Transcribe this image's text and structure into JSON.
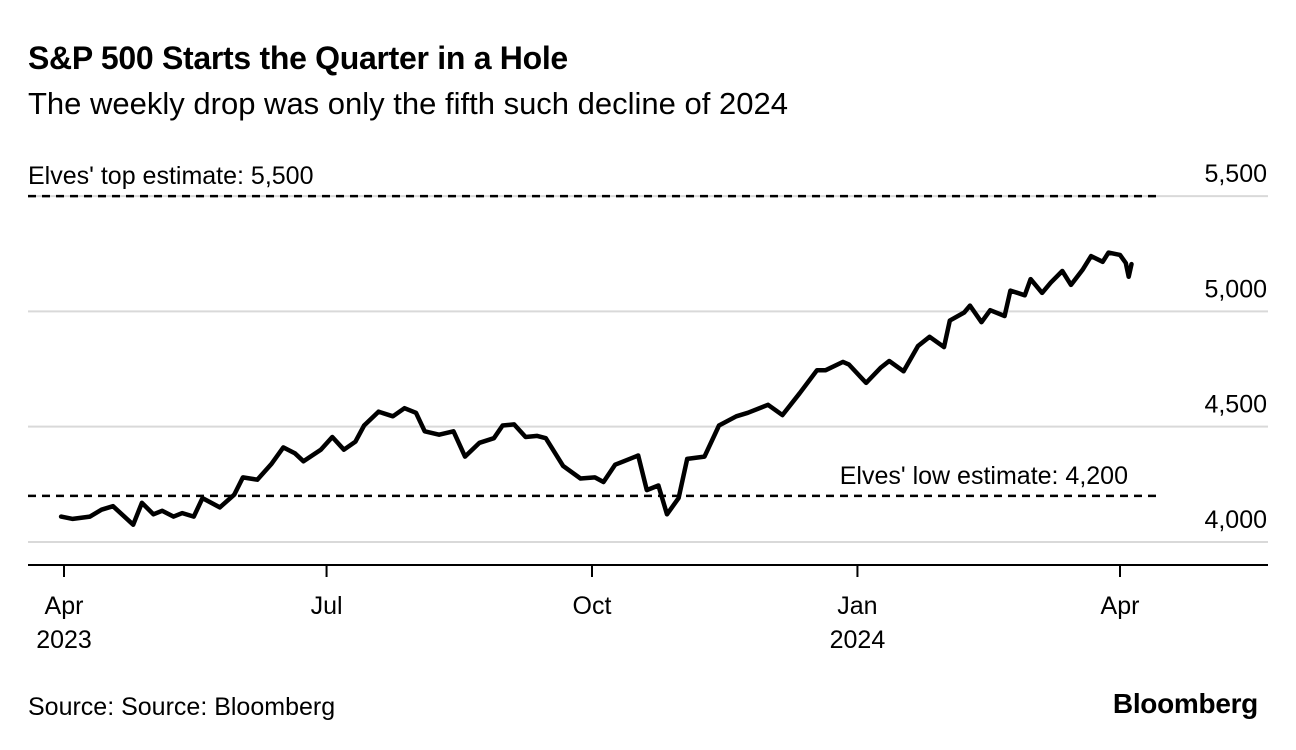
{
  "title": "S&P 500 Starts the Quarter in a Hole",
  "subtitle": "The weekly drop was only the fifth such decline of 2024",
  "source": "Source: Source: Bloomberg",
  "brand": "Bloomberg",
  "chart_data": {
    "type": "line",
    "ylim": [
      3900,
      5700
    ],
    "yticks": [
      {
        "value": 4000,
        "label": "4,000"
      },
      {
        "value": 4500,
        "label": "4,500"
      },
      {
        "value": 5000,
        "label": "5,000"
      },
      {
        "value": 5500,
        "label": "5,500"
      }
    ],
    "xticks": [
      {
        "date": "2023-04-01",
        "label": "Apr",
        "year": "2023"
      },
      {
        "date": "2023-07-01",
        "label": "Jul",
        "year": ""
      },
      {
        "date": "2023-10-01",
        "label": "Oct",
        "year": ""
      },
      {
        "date": "2024-01-01",
        "label": "Jan",
        "year": "2024"
      },
      {
        "date": "2024-04-01",
        "label": "Apr",
        "year": ""
      }
    ],
    "grid": true,
    "reference_lines": [
      {
        "value": 5500,
        "label": "Elves' top estimate: 5,500",
        "label_position": "left"
      },
      {
        "value": 4200,
        "label": "Elves' low estimate: 4,200",
        "label_position": "right"
      }
    ],
    "series": [
      {
        "values": [
          [
            "2023-03-31",
            4110
          ],
          [
            "2023-04-04",
            4100
          ],
          [
            "2023-04-10",
            4110
          ],
          [
            "2023-04-14",
            4140
          ],
          [
            "2023-04-18",
            4155
          ],
          [
            "2023-04-25",
            4075
          ],
          [
            "2023-04-28",
            4170
          ],
          [
            "2023-05-02",
            4120
          ],
          [
            "2023-05-05",
            4135
          ],
          [
            "2023-05-09",
            4110
          ],
          [
            "2023-05-12",
            4125
          ],
          [
            "2023-05-16",
            4110
          ],
          [
            "2023-05-19",
            4190
          ],
          [
            "2023-05-25",
            4150
          ],
          [
            "2023-05-30",
            4205
          ],
          [
            "2023-06-02",
            4280
          ],
          [
            "2023-06-07",
            4270
          ],
          [
            "2023-06-12",
            4340
          ],
          [
            "2023-06-16",
            4410
          ],
          [
            "2023-06-20",
            4385
          ],
          [
            "2023-06-23",
            4350
          ],
          [
            "2023-06-29",
            4400
          ],
          [
            "2023-07-03",
            4455
          ],
          [
            "2023-07-07",
            4400
          ],
          [
            "2023-07-11",
            4435
          ],
          [
            "2023-07-14",
            4505
          ],
          [
            "2023-07-19",
            4565
          ],
          [
            "2023-07-24",
            4545
          ],
          [
            "2023-07-28",
            4580
          ],
          [
            "2023-08-01",
            4560
          ],
          [
            "2023-08-04",
            4480
          ],
          [
            "2023-08-09",
            4465
          ],
          [
            "2023-08-14",
            4480
          ],
          [
            "2023-08-18",
            4370
          ],
          [
            "2023-08-23",
            4430
          ],
          [
            "2023-08-28",
            4450
          ],
          [
            "2023-08-31",
            4505
          ],
          [
            "2023-09-04",
            4510
          ],
          [
            "2023-09-08",
            4455
          ],
          [
            "2023-09-12",
            4460
          ],
          [
            "2023-09-15",
            4450
          ],
          [
            "2023-09-21",
            4330
          ],
          [
            "2023-09-27",
            4275
          ],
          [
            "2023-10-02",
            4280
          ],
          [
            "2023-10-05",
            4260
          ],
          [
            "2023-10-09",
            4335
          ],
          [
            "2023-10-12",
            4350
          ],
          [
            "2023-10-17",
            4375
          ],
          [
            "2023-10-20",
            4225
          ],
          [
            "2023-10-24",
            4245
          ],
          [
            "2023-10-27",
            4120
          ],
          [
            "2023-10-31",
            4190
          ],
          [
            "2023-11-03",
            4360
          ],
          [
            "2023-11-09",
            4370
          ],
          [
            "2023-11-14",
            4505
          ],
          [
            "2023-11-20",
            4545
          ],
          [
            "2023-11-24",
            4560
          ],
          [
            "2023-12-01",
            4595
          ],
          [
            "2023-12-06",
            4550
          ],
          [
            "2023-12-12",
            4645
          ],
          [
            "2023-12-18",
            4745
          ],
          [
            "2023-12-21",
            4745
          ],
          [
            "2023-12-27",
            4781
          ],
          [
            "2023-12-29",
            4770
          ],
          [
            "2024-01-04",
            4690
          ],
          [
            "2024-01-09",
            4755
          ],
          [
            "2024-01-12",
            4785
          ],
          [
            "2024-01-17",
            4740
          ],
          [
            "2024-01-22",
            4850
          ],
          [
            "2024-01-26",
            4890
          ],
          [
            "2024-01-31",
            4845
          ],
          [
            "2024-02-02",
            4960
          ],
          [
            "2024-02-07",
            4995
          ],
          [
            "2024-02-09",
            5025
          ],
          [
            "2024-02-13",
            4953
          ],
          [
            "2024-02-16",
            5005
          ],
          [
            "2024-02-21",
            4980
          ],
          [
            "2024-02-23",
            5090
          ],
          [
            "2024-02-28",
            5070
          ],
          [
            "2024-03-01",
            5140
          ],
          [
            "2024-03-05",
            5080
          ],
          [
            "2024-03-08",
            5125
          ],
          [
            "2024-03-12",
            5175
          ],
          [
            "2024-03-15",
            5115
          ],
          [
            "2024-03-19",
            5180
          ],
          [
            "2024-03-22",
            5240
          ],
          [
            "2024-03-26",
            5215
          ],
          [
            "2024-03-28",
            5255
          ],
          [
            "2024-04-01",
            5245
          ],
          [
            "2024-04-03",
            5210
          ],
          [
            "2024-04-04",
            5150
          ],
          [
            "2024-04-05",
            5205
          ]
        ]
      }
    ]
  }
}
